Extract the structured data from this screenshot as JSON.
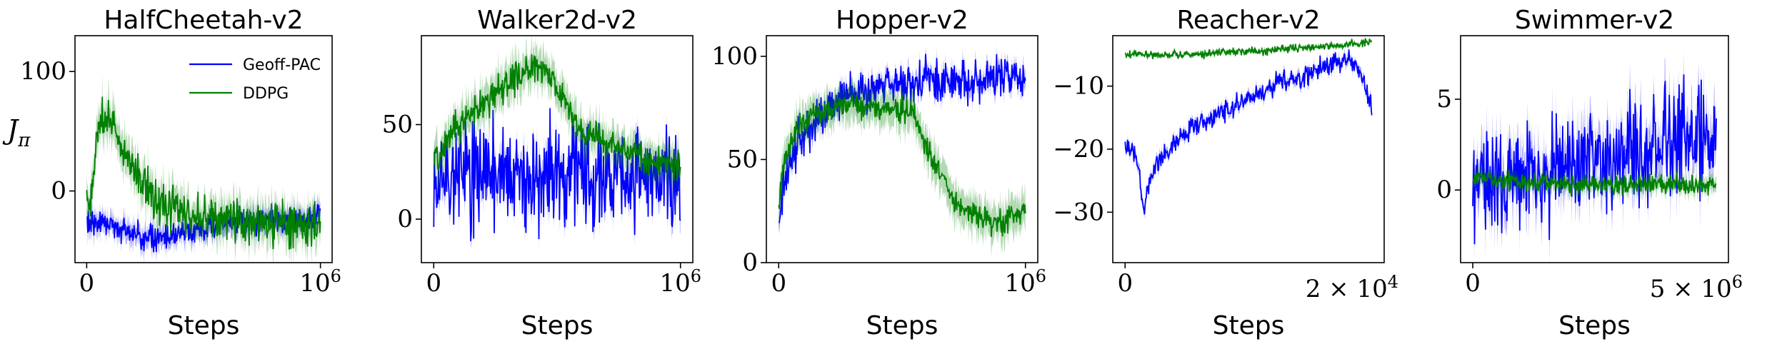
{
  "legend": [
    {
      "name": "Geoff-PAC",
      "color": "#0000ff"
    },
    {
      "name": "DDPG",
      "color": "#008000"
    }
  ],
  "chart_data": [
    {
      "type": "line",
      "title": "HalfCheetah-v2",
      "xlabel": "Steps",
      "ylabel": "J_π",
      "xlim": [
        -50000,
        1050000
      ],
      "ylim": [
        -60,
        130
      ],
      "yticks": [
        0,
        100
      ],
      "ytick_labels": [
        "0",
        "100"
      ],
      "xticks": [
        0,
        1000000
      ],
      "xtick_labels": [
        "0",
        "10^6"
      ],
      "x_multiplier": "",
      "legend_position": "top-right",
      "series": [
        {
          "name": "Geoff-PAC",
          "color": "#0000ff",
          "x": [
            0,
            50000,
            100000,
            150000,
            200000,
            250000,
            300000,
            350000,
            400000,
            450000,
            500000,
            550000,
            600000,
            650000,
            700000,
            750000,
            800000,
            850000,
            900000,
            950000,
            1000000
          ],
          "y": [
            -25,
            -26,
            -28,
            -32,
            -36,
            -39,
            -40,
            -38,
            -36,
            -33,
            -31,
            -29,
            -28,
            -27,
            -26,
            -25,
            -24,
            -24,
            -23,
            -22,
            -20
          ],
          "noise": 5,
          "band": 8
        },
        {
          "name": "DDPG",
          "color": "#008000",
          "x": [
            0,
            20000,
            40000,
            60000,
            80000,
            100000,
            150000,
            200000,
            250000,
            300000,
            350000,
            400000,
            450000,
            500000,
            600000,
            700000,
            800000,
            900000,
            1000000
          ],
          "y": [
            0,
            -10,
            40,
            55,
            70,
            60,
            40,
            20,
            5,
            -5,
            -12,
            -18,
            -20,
            -22,
            -24,
            -25,
            -27,
            -28,
            -30
          ],
          "noise": 9,
          "band": 14
        }
      ]
    },
    {
      "type": "line",
      "title": "Walker2d-v2",
      "xlabel": "Steps",
      "ylabel": "",
      "xlim": [
        -50000,
        1050000
      ],
      "ylim": [
        -23,
        97
      ],
      "yticks": [
        0,
        50
      ],
      "ytick_labels": [
        "0",
        "50"
      ],
      "xticks": [
        0,
        1000000
      ],
      "xtick_labels": [
        "0",
        "10^6"
      ],
      "x_multiplier": "",
      "series": [
        {
          "name": "Geoff-PAC",
          "color": "#0000ff",
          "x": [
            0,
            50000,
            100000,
            150000,
            200000,
            250000,
            300000,
            350000,
            400000,
            450000,
            500000,
            550000,
            600000,
            650000,
            700000,
            750000,
            800000,
            850000,
            900000,
            950000,
            1000000
          ],
          "y": [
            20,
            25,
            22,
            24,
            21,
            23,
            20,
            22,
            24,
            21,
            23,
            20,
            22,
            24,
            21,
            22,
            23,
            21,
            22,
            20,
            21
          ],
          "noise": 14,
          "band": 6
        },
        {
          "name": "DDPG",
          "color": "#008000",
          "x": [
            0,
            50000,
            100000,
            150000,
            200000,
            250000,
            300000,
            350000,
            400000,
            450000,
            500000,
            550000,
            600000,
            650000,
            700000,
            750000,
            800000,
            850000,
            900000,
            950000,
            1000000
          ],
          "y": [
            30,
            42,
            50,
            56,
            60,
            66,
            72,
            76,
            80,
            78,
            70,
            58,
            48,
            44,
            40,
            37,
            35,
            32,
            30,
            29,
            28
          ],
          "noise": 4,
          "band": 9
        }
      ]
    },
    {
      "type": "line",
      "title": "Hopper-v2",
      "xlabel": "Steps",
      "ylabel": "",
      "xlim": [
        -50000,
        1050000
      ],
      "ylim": [
        0,
        110
      ],
      "yticks": [
        0,
        50,
        100
      ],
      "ytick_labels": [
        "0",
        "50",
        "100"
      ],
      "xticks": [
        0,
        1000000
      ],
      "xtick_labels": [
        "0",
        "10^6"
      ],
      "x_multiplier": "",
      "series": [
        {
          "name": "Geoff-PAC",
          "color": "#0000ff",
          "x": [
            0,
            20000,
            50000,
            100000,
            150000,
            200000,
            250000,
            300000,
            350000,
            400000,
            450000,
            500000,
            550000,
            600000,
            650000,
            700000,
            750000,
            800000,
            850000,
            900000,
            950000,
            1000000
          ],
          "y": [
            20,
            35,
            50,
            62,
            70,
            75,
            79,
            82,
            84,
            85,
            86,
            87,
            87,
            88,
            88,
            88,
            89,
            88,
            89,
            89,
            88,
            89
          ],
          "noise": 5,
          "band": 4
        },
        {
          "name": "DDPG",
          "color": "#008000",
          "x": [
            0,
            20000,
            50000,
            100000,
            150000,
            200000,
            250000,
            300000,
            350000,
            400000,
            450000,
            500000,
            550000,
            600000,
            650000,
            700000,
            750000,
            800000,
            850000,
            900000,
            950000,
            1000000
          ],
          "y": [
            30,
            45,
            60,
            68,
            72,
            74,
            76,
            76,
            75,
            75,
            74,
            74,
            72,
            55,
            45,
            32,
            25,
            24,
            20,
            19,
            22,
            26
          ],
          "noise": 3,
          "band": 8
        }
      ]
    },
    {
      "type": "line",
      "title": "Reacher-v2",
      "xlabel": "Steps",
      "ylabel": "",
      "xlim": [
        -1000,
        21000
      ],
      "ylim": [
        -38,
        -2
      ],
      "yticks": [
        -30,
        -20,
        -10
      ],
      "ytick_labels": [
        "−30",
        "−20",
        "−10"
      ],
      "xticks": [
        0
      ],
      "xtick_labels": [
        "0"
      ],
      "x_multiplier": "2 × 10^4",
      "series": [
        {
          "name": "Geoff-PAC",
          "color": "#0000ff",
          "x": [
            0,
            500,
            1000,
            1500,
            2000,
            3000,
            4000,
            5000,
            6000,
            7000,
            8000,
            9000,
            10000,
            11000,
            12000,
            13000,
            14000,
            15000,
            16000,
            17000,
            18000,
            19000,
            20000
          ],
          "y": [
            -20,
            -20,
            -22,
            -30,
            -25,
            -21,
            -19,
            -17,
            -16,
            -15,
            -14,
            -13,
            -12,
            -11,
            -10,
            -9,
            -9,
            -8,
            -7,
            -6,
            -6,
            -7,
            -14
          ],
          "noise": 0.8,
          "band": 0.7
        },
        {
          "name": "DDPG",
          "color": "#008000",
          "x": [
            0,
            2000,
            4000,
            6000,
            8000,
            10000,
            11000,
            12000,
            14000,
            16000,
            18000,
            20000
          ],
          "y": [
            -5,
            -5,
            -5,
            -5,
            -4.5,
            -4.5,
            -4.5,
            -4.2,
            -4,
            -3.8,
            -3.5,
            -3.0
          ],
          "noise": 0.3,
          "band": 0.3
        }
      ]
    },
    {
      "type": "line",
      "title": "Swimmer-v2",
      "xlabel": "Steps",
      "ylabel": "",
      "xlim": [
        -50000,
        1050000
      ],
      "ylim": [
        -4,
        8.5
      ],
      "yticks": [
        0,
        5
      ],
      "ytick_labels": [
        "0",
        "5"
      ],
      "xticks": [
        0
      ],
      "xtick_labels": [
        "0"
      ],
      "x_multiplier": "5 × 10^6",
      "series": [
        {
          "name": "Geoff-PAC",
          "color": "#0000ff",
          "x": [
            0,
            100000,
            200000,
            300000,
            400000,
            500000,
            600000,
            700000,
            800000,
            900000,
            1000000
          ],
          "y": [
            0.5,
            0.3,
            0.6,
            0.9,
            1.3,
            1.6,
            1.9,
            2.2,
            2.5,
            2.8,
            3.0
          ],
          "noise": 1.5,
          "band": 1.2
        },
        {
          "name": "DDPG",
          "color": "#008000",
          "x": [
            0,
            100000,
            200000,
            300000,
            400000,
            500000,
            600000,
            700000,
            800000,
            900000,
            1000000
          ],
          "y": [
            0.8,
            0.5,
            0.4,
            0.4,
            0.3,
            0.3,
            0.3,
            0.3,
            0.3,
            0.3,
            0.3
          ],
          "noise": 0.25,
          "band": 0.4
        }
      ]
    }
  ]
}
